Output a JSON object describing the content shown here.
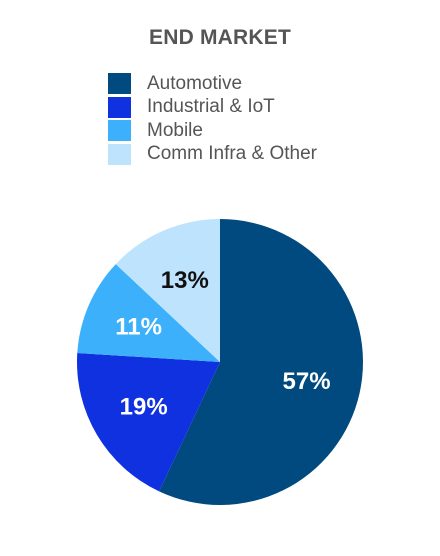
{
  "chart_data": {
    "type": "pie",
    "title": "END MARKET",
    "legend_placement": "top",
    "categories": [
      "Automotive",
      "Industrial & IoT",
      "Mobile",
      "Comm Infra & Other"
    ],
    "values": [
      57,
      19,
      11,
      13
    ],
    "labels": [
      "57%",
      "19%",
      "11%",
      "13%"
    ],
    "colors": [
      "#004A80",
      "#1031E0",
      "#3CB0FB",
      "#BEE3FC"
    ],
    "label_colors": [
      "#ffffff",
      "#ffffff",
      "#ffffff",
      "#111111"
    ]
  }
}
